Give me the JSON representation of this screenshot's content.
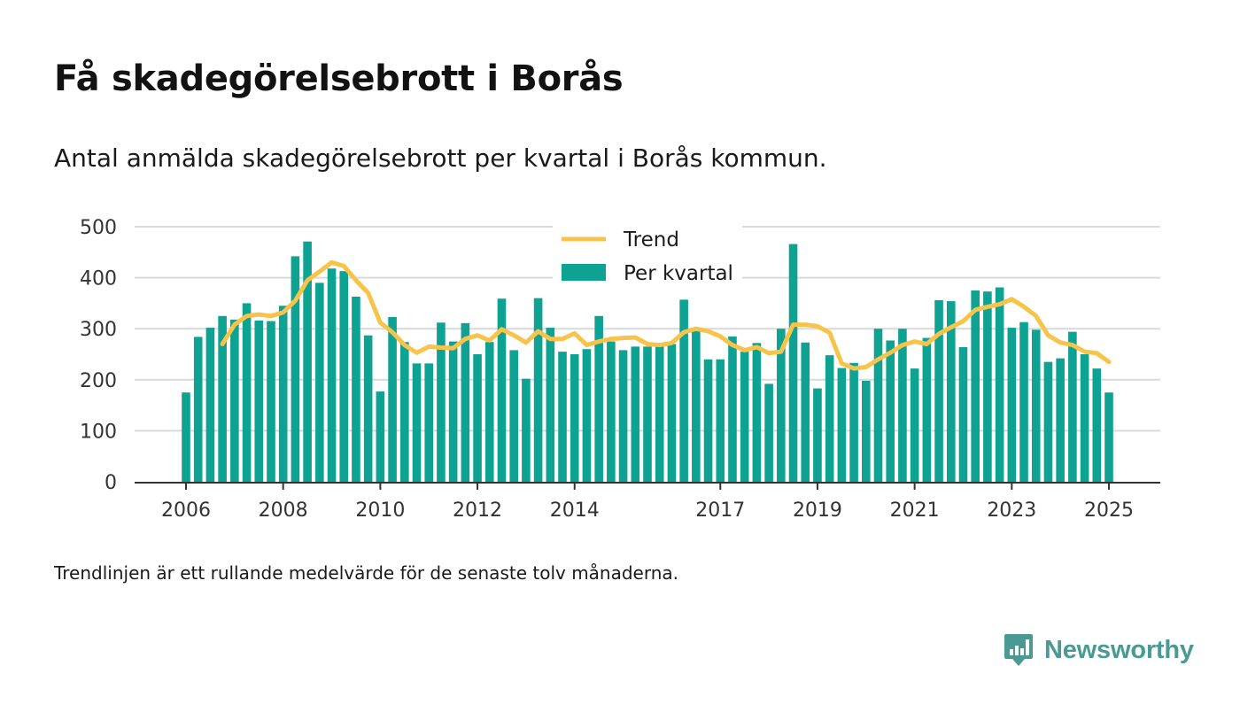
{
  "title": "Få skadegörelsebrott i Borås",
  "subtitle": "Antal anmälda skadegörelsebrott per kvartal i Borås kommun.",
  "footnote": "Trendlinjen är ett rullande medelvärde för de senaste tolv månaderna.",
  "brand": {
    "name": "Newsworthy",
    "icon": "newsworthy-logo-icon"
  },
  "colors": {
    "bar": "#0ea293",
    "trend": "#f7c34a",
    "grid": "#d9d9d9",
    "axis": "#333333",
    "brand": "#4a9a93"
  },
  "chart_data": {
    "type": "bar",
    "legend_position": "top-center",
    "grid": true,
    "ylim": [
      0,
      500
    ],
    "yticks": [
      0,
      100,
      200,
      300,
      400,
      500
    ],
    "xticks": [
      "2006",
      "2008",
      "2010",
      "2012",
      "2014",
      "2017",
      "2019",
      "2021",
      "2023",
      "2025"
    ],
    "series": [
      {
        "name": "Per kvartal",
        "type": "bar",
        "values": [
          175,
          284,
          302,
          325,
          318,
          350,
          316,
          315,
          345,
          442,
          471,
          390,
          418,
          413,
          363,
          287,
          177,
          323,
          274,
          232,
          232,
          312,
          275,
          311,
          250,
          274,
          359,
          258,
          202,
          360,
          302,
          255,
          250,
          260,
          325,
          275,
          258,
          265,
          265,
          265,
          270,
          357,
          297,
          240,
          240,
          285,
          255,
          272,
          192,
          300,
          466,
          273,
          183,
          248,
          223,
          233,
          198,
          300,
          277,
          300,
          222,
          282,
          356,
          354,
          264,
          375,
          373,
          381,
          302,
          313,
          298,
          235,
          242,
          294,
          250,
          222,
          175
        ]
      },
      {
        "name": "Trend",
        "type": "line",
        "values": [
          null,
          null,
          null,
          270,
          308,
          325,
          328,
          325,
          332,
          355,
          395,
          412,
          430,
          423,
          395,
          370,
          312,
          293,
          268,
          253,
          265,
          263,
          262,
          280,
          287,
          277,
          299,
          287,
          273,
          295,
          280,
          280,
          291,
          268,
          275,
          280,
          282,
          283,
          270,
          268,
          272,
          293,
          300,
          295,
          285,
          268,
          258,
          264,
          252,
          255,
          308,
          308,
          305,
          292,
          232,
          222,
          225,
          240,
          253,
          268,
          275,
          270,
          290,
          303,
          315,
          337,
          343,
          348,
          358,
          343,
          325,
          287,
          273,
          268,
          255,
          252,
          235
        ]
      }
    ],
    "bar_x": [
      2006.0,
      2006.25,
      2006.5,
      2006.75,
      2007.0,
      2007.25,
      2007.5,
      2007.75,
      2008.0,
      2008.25,
      2008.5,
      2008.75,
      2009.0,
      2009.25,
      2009.5,
      2009.75,
      2010.0,
      2010.25,
      2010.5,
      2010.75,
      2011.0,
      2011.25,
      2011.5,
      2011.75,
      2012.0,
      2012.25,
      2012.5,
      2012.75,
      2013.0,
      2013.25,
      2013.5,
      2013.75,
      2014.0,
      2014.25,
      2014.5,
      2014.75,
      2015.0,
      2015.25,
      2015.5,
      2015.75,
      2016.0,
      2016.25,
      2016.5,
      2016.75,
      2017.0,
      2017.25,
      2017.5,
      2017.75,
      2018.0,
      2018.25,
      2018.5,
      2018.75,
      2019.0,
      2019.25,
      2019.5,
      2019.75,
      2020.0,
      2020.25,
      2020.5,
      2020.75,
      2021.0,
      2021.25,
      2021.5,
      2021.75,
      2022.0,
      2022.25,
      2022.5,
      2022.75,
      2023.0,
      2023.25,
      2023.5,
      2023.75,
      2024.0,
      2024.25,
      2024.5,
      2024.75,
      2025.0
    ]
  }
}
